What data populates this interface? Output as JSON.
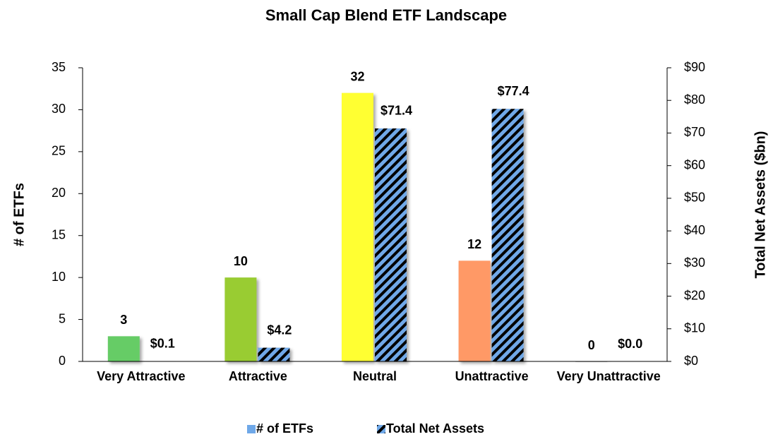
{
  "chart_data": {
    "type": "bar",
    "title": "Small Cap Blend ETF Landscape",
    "categories": [
      "Very Attractive",
      "Attractive",
      "Neutral",
      "Unattractive",
      "Very Unattractive"
    ],
    "series": [
      {
        "name": "# of ETFs",
        "color": "#6fa8e8",
        "colors": [
          "#66cc66",
          "#99cc33",
          "#ffff33",
          "#ff9966",
          "#cccccc"
        ],
        "values": [
          3,
          10,
          32,
          12,
          0
        ]
      },
      {
        "name": "Total Net Assets",
        "color": "#6fa8e8",
        "axis": "y2",
        "values": [
          0.1,
          4.2,
          71.4,
          77.4,
          0.0
        ],
        "value_labels": [
          "$0.1",
          "$4.2",
          "$71.4",
          "$77.4",
          "$0.0"
        ]
      }
    ],
    "ylabel": "# of ETFs",
    "y2label": "Total Net Assets ($bn)",
    "ylim": [
      0,
      35
    ],
    "yticks": [
      0,
      5,
      10,
      15,
      20,
      25,
      30,
      35
    ],
    "y2lim": [
      0,
      90
    ],
    "y2ticks": [
      {
        "value": 0,
        "label": "$0"
      },
      {
        "value": 10,
        "label": "$10"
      },
      {
        "value": 20,
        "label": "$20"
      },
      {
        "value": 30,
        "label": "$30"
      },
      {
        "value": 40,
        "label": "$40"
      },
      {
        "value": 50,
        "label": "$50"
      },
      {
        "value": 60,
        "label": "$60"
      },
      {
        "value": 70,
        "label": "$70"
      },
      {
        "value": 80,
        "label": "$80"
      },
      {
        "value": 90,
        "label": "$90"
      }
    ],
    "legend": "bottom",
    "grid": false
  }
}
